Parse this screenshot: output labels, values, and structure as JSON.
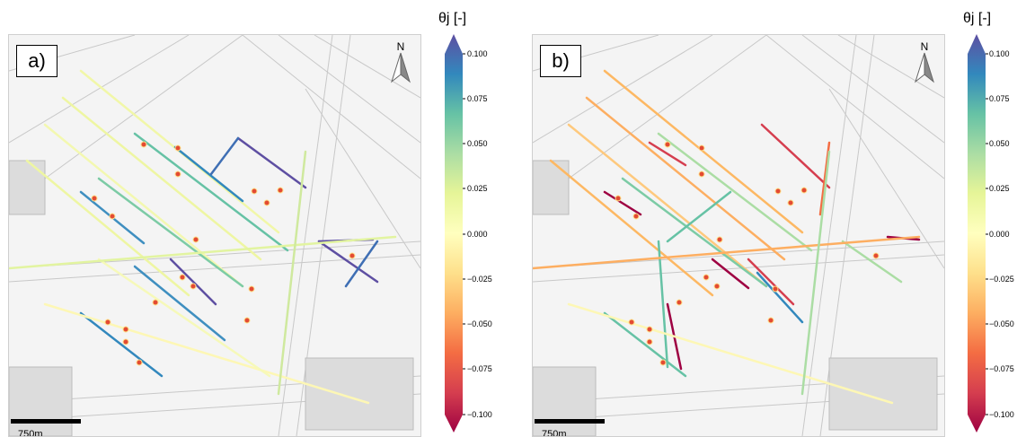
{
  "colorbar": {
    "title": "θj [-]",
    "ticks_left": [
      "0.100",
      "0.075",
      "0.050",
      "0.025",
      "0.000",
      "−0.025",
      "−0.050",
      "−0.075",
      "−0.100"
    ],
    "ticks_right": [
      "0.100",
      "0.075",
      "0.050",
      "0.025",
      "0.000",
      "−0.025",
      "−0.050",
      "−0.075",
      "−0.100"
    ],
    "min": -0.1,
    "max": 0.1,
    "colors": [
      "#9e0142",
      "#d53e4f",
      "#f46d43",
      "#fdae61",
      "#fee08b",
      "#ffffbf",
      "#e6f598",
      "#abdda4",
      "#66c2a5",
      "#3288bd",
      "#5e4fa2"
    ]
  },
  "panels": [
    {
      "label": "a)",
      "north": "N",
      "scale": "750m"
    },
    {
      "label": "b)",
      "north": "N",
      "scale": "750m"
    }
  ]
}
